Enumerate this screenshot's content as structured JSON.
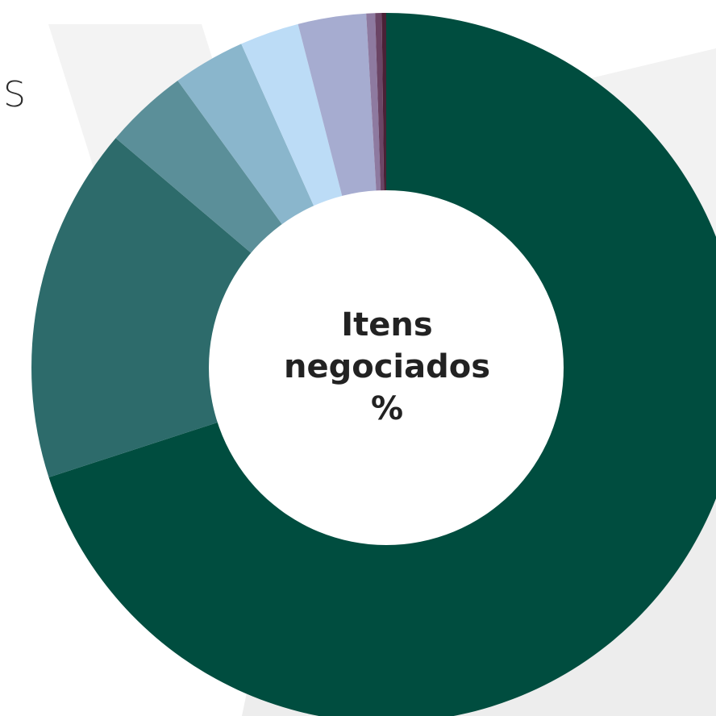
{
  "fragment_text": "S",
  "chart_data": {
    "type": "pie",
    "donut": true,
    "center_label": [
      "Itens",
      "negociados",
      "%"
    ],
    "slices": [
      {
        "value": 70.0,
        "color": "#004d3f"
      },
      {
        "value": 16.2,
        "color": "#2d6b6b"
      },
      {
        "value": 3.8,
        "color": "#5b8f99"
      },
      {
        "value": 3.3,
        "color": "#8ab6cc"
      },
      {
        "value": 2.7,
        "color": "#bcdcf6"
      },
      {
        "value": 3.1,
        "color": "#a6acd0"
      },
      {
        "value": 0.4,
        "color": "#8e7aa0"
      },
      {
        "value": 0.3,
        "color": "#6b4565"
      },
      {
        "value": 0.2,
        "color": "#4a2136"
      }
    ]
  }
}
